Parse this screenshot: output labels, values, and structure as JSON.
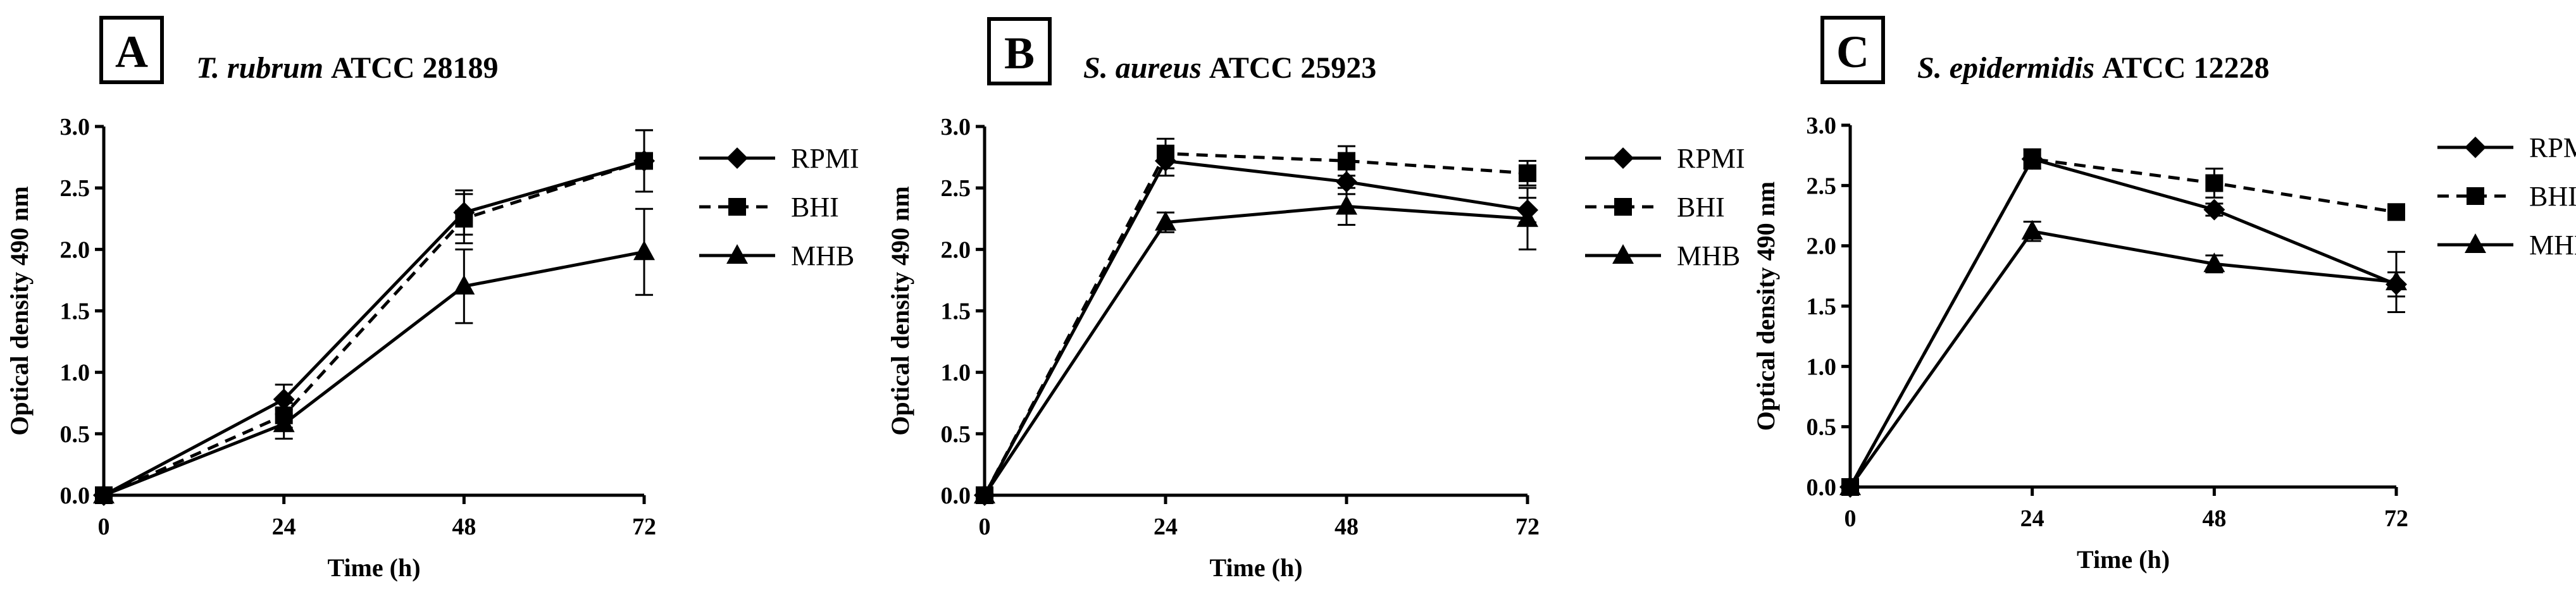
{
  "chart_data": [
    {
      "type": "line",
      "panel_letter": "A",
      "title_italic": "T. rubrum",
      "title_rest": " ATCC 28189",
      "xlabel": "Time (h)",
      "ylabel": "Optical density 490 nm",
      "x": [
        0,
        24,
        48,
        72
      ],
      "xticks": [
        "0",
        "24",
        "48",
        "72"
      ],
      "yticks": [
        "0.0",
        "0.5",
        "1.0",
        "1.5",
        "2.0",
        "2.5",
        "3.0"
      ],
      "xlim": [
        0,
        72
      ],
      "ylim": [
        0,
        3.0
      ],
      "legend_position": "right",
      "series": [
        {
          "name": "RPMI",
          "marker": "diamond",
          "dash": "solid",
          "values": [
            0,
            0.78,
            2.3,
            2.72
          ],
          "errors": [
            0,
            0.12,
            0.18,
            0.25
          ]
        },
        {
          "name": "BHI",
          "marker": "square",
          "dash": "dashed",
          "values": [
            0,
            0.65,
            2.25,
            2.72
          ],
          "errors": [
            0,
            0.1,
            0.2,
            0.25
          ]
        },
        {
          "name": "MHB",
          "marker": "triangle",
          "dash": "solid",
          "values": [
            0,
            0.58,
            1.7,
            1.98
          ],
          "errors": [
            0,
            0.12,
            0.3,
            0.35
          ]
        }
      ]
    },
    {
      "type": "line",
      "panel_letter": "B",
      "title_italic": "S. aureus",
      "title_rest": " ATCC 25923",
      "xlabel": "Time (h)",
      "ylabel": "Optical density 490 nm",
      "x": [
        0,
        24,
        48,
        72
      ],
      "xticks": [
        "0",
        "24",
        "48",
        "72"
      ],
      "yticks": [
        "0.0",
        "0.5",
        "1.0",
        "1.5",
        "2.0",
        "2.5",
        "3.0"
      ],
      "xlim": [
        0,
        72
      ],
      "ylim": [
        0,
        3.0
      ],
      "legend_position": "right",
      "series": [
        {
          "name": "RPMI",
          "marker": "diamond",
          "dash": "solid",
          "values": [
            0,
            2.72,
            2.55,
            2.32
          ],
          "errors": [
            0,
            0.12,
            0.1,
            0.1
          ]
        },
        {
          "name": "BHI",
          "marker": "square",
          "dash": "dashed",
          "values": [
            0,
            2.78,
            2.72,
            2.62
          ],
          "errors": [
            0,
            0.12,
            0.12,
            0.1
          ]
        },
        {
          "name": "MHB",
          "marker": "triangle",
          "dash": "solid",
          "values": [
            0,
            2.22,
            2.35,
            2.25
          ],
          "errors": [
            0,
            0.08,
            0.15,
            0.25
          ]
        }
      ]
    },
    {
      "type": "line",
      "panel_letter": "C",
      "title_italic": "S. epidermidis",
      "title_rest": " ATCC 12228",
      "xlabel": "Time (h)",
      "ylabel": "Optical density 490 nm",
      "x": [
        0,
        24,
        48,
        72
      ],
      "xticks": [
        "0",
        "24",
        "48",
        "72"
      ],
      "yticks": [
        "0.0",
        "0.5",
        "1.0",
        "1.5",
        "2.0",
        "2.5",
        "3.0"
      ],
      "xlim": [
        0,
        72
      ],
      "ylim": [
        0,
        3.0
      ],
      "legend_position": "right",
      "series": [
        {
          "name": "RPMI",
          "marker": "diamond",
          "dash": "solid",
          "values": [
            0,
            2.72,
            2.3,
            1.68
          ],
          "errors": [
            0,
            0.08,
            0.05,
            0.1
          ]
        },
        {
          "name": "BHI",
          "marker": "square",
          "dash": "dashed",
          "values": [
            0,
            2.72,
            2.52,
            2.28
          ],
          "errors": [
            0,
            0.08,
            0.12,
            0.05
          ]
        },
        {
          "name": "MHB",
          "marker": "triangle",
          "dash": "solid",
          "values": [
            0,
            2.12,
            1.85,
            1.7
          ],
          "errors": [
            0,
            0.08,
            0.07,
            0.25
          ]
        }
      ]
    }
  ]
}
